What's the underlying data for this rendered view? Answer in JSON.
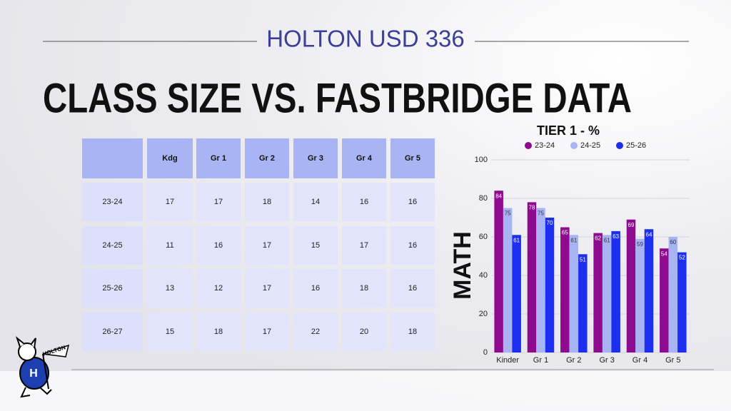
{
  "header": {
    "title": "HOLTON USD 336",
    "heading": "CLASS SIZE VS. FASTBRIDGE DATA"
  },
  "table": {
    "columns": [
      "Kdg",
      "Gr 1",
      "Gr 2",
      "Gr 3",
      "Gr 4",
      "Gr 5"
    ],
    "rows": [
      {
        "label": "23-24",
        "values": [
          17,
          17,
          18,
          14,
          16,
          16
        ]
      },
      {
        "label": "24-25",
        "values": [
          11,
          16,
          17,
          15,
          17,
          16
        ]
      },
      {
        "label": "25-26",
        "values": [
          13,
          12,
          17,
          16,
          18,
          16
        ]
      },
      {
        "label": "26-27",
        "values": [
          15,
          18,
          17,
          22,
          20,
          18
        ]
      }
    ]
  },
  "logo": {
    "text": "HOLTON"
  },
  "chart_data": {
    "type": "bar",
    "title": "TIER 1 - %",
    "y_label": "MATH",
    "categories": [
      "Kinder",
      "Gr 1",
      "Gr 2",
      "Gr 3",
      "Gr 4",
      "Gr 5"
    ],
    "series": [
      {
        "name": "23-24",
        "color": "#8e0a8e",
        "values": [
          84,
          78,
          65,
          62,
          69,
          54
        ]
      },
      {
        "name": "24-25",
        "color": "#a8b3f4",
        "values": [
          75,
          75,
          61,
          61,
          59,
          60
        ]
      },
      {
        "name": "25-26",
        "color": "#1c2ff0",
        "values": [
          61,
          70,
          51,
          63,
          64,
          52
        ]
      }
    ],
    "ylim": [
      0,
      100
    ],
    "yticks": [
      0,
      20,
      40,
      60,
      80,
      100
    ],
    "grid": true,
    "legend": "top"
  }
}
